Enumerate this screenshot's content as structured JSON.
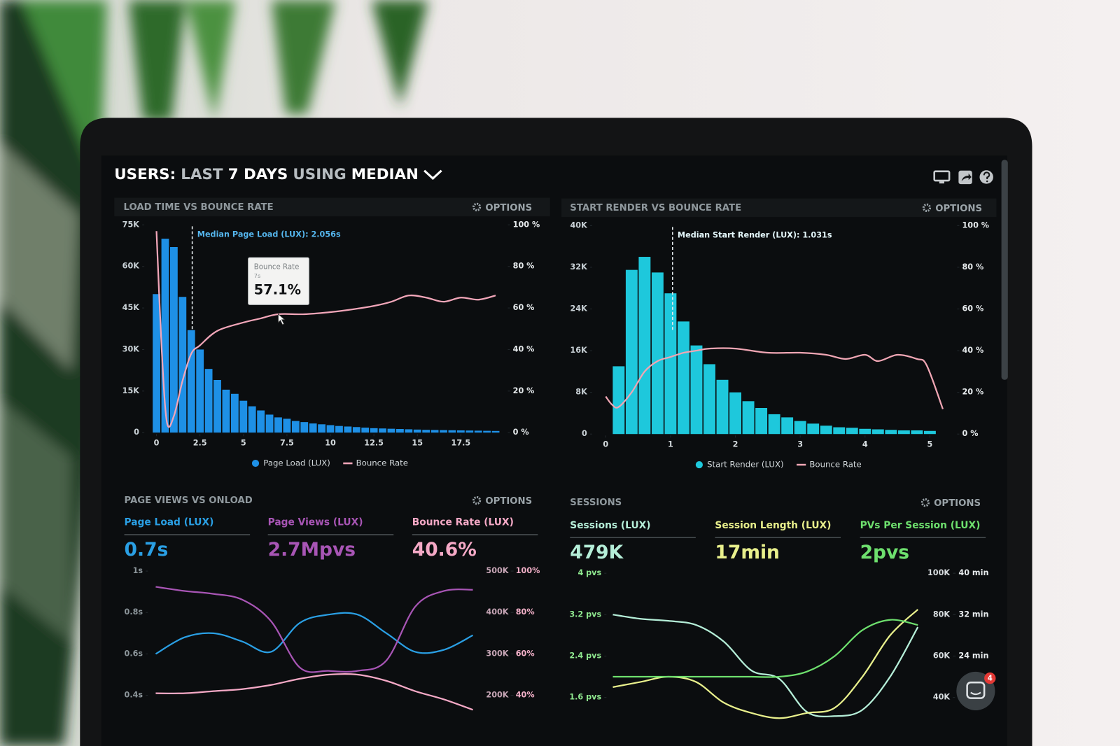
{
  "header": {
    "title_parts": [
      "USERS:",
      "LAST",
      "7 DAYS",
      "USING",
      "MEDIAN"
    ]
  },
  "chat_badge": "4",
  "chart_data": [
    {
      "type": "combo",
      "title": "LOAD TIME VS BOUNCE RATE",
      "options": "OPTIONS",
      "xlim": [
        -0.25,
        19.75
      ],
      "xticks": [
        0,
        2.5,
        5,
        7.5,
        10,
        12.5,
        15,
        17.5
      ],
      "ylim": [
        0,
        75000
      ],
      "yticks": [
        {
          "value": 75000,
          "label": "75K"
        },
        {
          "value": 60000,
          "label": "60K"
        },
        {
          "value": 45000,
          "label": "45K"
        },
        {
          "value": 30000,
          "label": "30K"
        },
        {
          "value": 15000,
          "label": "15K"
        },
        0
      ],
      "y2lim": [
        0,
        100
      ],
      "y2ticks": [
        {
          "value": 100,
          "label": "100 %"
        },
        {
          "value": 80,
          "label": "80 %"
        },
        {
          "value": 60,
          "label": "60 %"
        },
        {
          "value": 40,
          "label": "40 %"
        },
        {
          "value": 20,
          "label": "20 %"
        },
        {
          "value": 0,
          "label": "0 %"
        }
      ],
      "series": [
        {
          "name": "Page Load (LUX)",
          "type": "histogram",
          "color": "#1e90e6",
          "bins": [
            -0.25,
            0.25,
            0.75,
            1.25,
            1.75,
            2.25,
            2.75,
            3.25,
            3.75,
            4.25,
            4.75,
            5.25,
            5.75,
            6.25,
            6.75,
            7.25,
            7.75,
            8.25,
            8.75,
            9.25,
            9.75,
            10.25,
            10.75,
            11.25,
            11.75,
            12.25,
            12.75,
            13.25,
            13.75,
            14.25,
            14.75,
            15.25,
            15.75,
            16.25,
            16.75,
            17.25,
            17.75,
            18.25,
            18.75,
            19.25,
            19.75
          ],
          "values": [
            50000,
            70000,
            67000,
            49000,
            37000,
            30000,
            23000,
            19000,
            15500,
            14000,
            11500,
            9500,
            8000,
            6500,
            5500,
            5000,
            4200,
            3800,
            3300,
            3000,
            2700,
            2400,
            2200,
            2000,
            1800,
            1600,
            1500,
            1400,
            1300,
            1200,
            1100,
            1000,
            950,
            900,
            850,
            800,
            750,
            700,
            650,
            600
          ]
        },
        {
          "name": "Bounce Rate",
          "type": "line",
          "axis": "y2",
          "color": "#f2a6b9",
          "x": [
            0,
            0.3,
            0.6,
            1,
            1.5,
            2,
            2.5,
            3.5,
            5,
            6,
            7,
            8.5,
            10,
            11,
            12.5,
            13.5,
            14.5,
            15.5,
            16.5,
            17.5,
            18.5,
            19.5
          ],
          "values": [
            97,
            40,
            5,
            8,
            25,
            38,
            42,
            49,
            53,
            55,
            57,
            57,
            58,
            59,
            61,
            63,
            66,
            65,
            63,
            65,
            64,
            66
          ]
        }
      ],
      "median": {
        "label": "Median Page Load (LUX): 2.056s",
        "x": 2.056
      },
      "tooltip": {
        "title": "Bounce Rate",
        "x": 7,
        "x_label": "7s",
        "axis": "y2",
        "value": 57.1,
        "value_label": "57.1%"
      }
    },
    {
      "type": "combo",
      "title": "START RENDER VS BOUNCE RATE",
      "options": "OPTIONS",
      "xlim": [
        0,
        5.2
      ],
      "xticks": [
        0,
        1,
        2,
        3,
        4,
        5
      ],
      "ylim": [
        0,
        40000
      ],
      "yticks": [
        {
          "value": 40000,
          "label": "40K"
        },
        {
          "value": 32000,
          "label": "32K"
        },
        {
          "value": 24000,
          "label": "24K"
        },
        {
          "value": 16000,
          "label": "16K"
        },
        {
          "value": 8000,
          "label": "8K"
        },
        0
      ],
      "y2lim": [
        0,
        100
      ],
      "y2ticks": [
        {
          "value": 100,
          "label": "100 %"
        },
        {
          "value": 80,
          "label": "80 %"
        },
        {
          "value": 60,
          "label": "60 %"
        },
        {
          "value": 40,
          "label": "40 %"
        },
        {
          "value": 20,
          "label": "20 %"
        },
        {
          "value": 0,
          "label": "0 %"
        }
      ],
      "series": [
        {
          "name": "Start Render (LUX)",
          "type": "histogram",
          "color": "#1ec8dc",
          "bins": [
            0.1,
            0.3,
            0.5,
            0.7,
            0.9,
            1.1,
            1.3,
            1.5,
            1.7,
            1.9,
            2.1,
            2.3,
            2.5,
            2.7,
            2.9,
            3.1,
            3.3,
            3.5,
            3.7,
            3.9,
            4.1,
            4.3,
            4.5,
            4.7,
            4.9,
            5.1
          ],
          "values": [
            13000,
            31500,
            34000,
            31000,
            27000,
            21600,
            17000,
            13400,
            10400,
            8000,
            6300,
            5000,
            3800,
            3200,
            2500,
            2000,
            1600,
            1300,
            1200,
            1000,
            900,
            800,
            700,
            700,
            600
          ]
        },
        {
          "name": "Bounce Rate",
          "type": "line",
          "axis": "y2",
          "color": "#f0a6b4",
          "x": [
            0,
            0.1,
            0.2,
            0.4,
            0.6,
            0.8,
            1,
            1.2,
            1.4,
            1.6,
            2,
            2.5,
            3,
            3.4,
            3.7,
            4,
            4.2,
            4.5,
            4.8,
            4.95,
            5.2
          ],
          "values": [
            18,
            14,
            13,
            20,
            30,
            35,
            37,
            39,
            40,
            41,
            41,
            39,
            39,
            38,
            36,
            38,
            35,
            38,
            36,
            33,
            12
          ]
        }
      ],
      "median": {
        "label": "Median Start Render (LUX): 1.031s",
        "x": 1.031
      }
    },
    {
      "type": "line",
      "title": "PAGE VIEWS VS ONLOAD",
      "options": "OPTIONS",
      "categories": [
        null,
        null,
        null,
        null,
        null,
        null,
        null,
        null,
        null,
        null,
        null,
        null
      ],
      "ylim": [
        0.3,
        1
      ],
      "yticks": [
        {
          "value": 1,
          "label": "1s"
        },
        {
          "value": 0.8,
          "label": "0.8s"
        },
        {
          "value": 0.6,
          "label": "0.6s"
        },
        {
          "value": 0.4,
          "label": "0.4s"
        }
      ],
      "y2lim": [
        150000,
        500000
      ],
      "y2ticks": [
        {
          "value": 500000,
          "label": "500K"
        },
        {
          "value": 400000,
          "label": "400K"
        },
        {
          "value": 300000,
          "label": "300K"
        },
        {
          "value": 200000,
          "label": "200K"
        }
      ],
      "y3lim": [
        30,
        100
      ],
      "y3ticks": [
        {
          "value": 100,
          "label": "100%"
        },
        {
          "value": 80,
          "label": "80%"
        },
        {
          "value": 60,
          "label": "60%"
        },
        {
          "value": 40,
          "label": "40%"
        }
      ],
      "series": [
        {
          "name": "Page Load (LUX)",
          "kpi": "0.7s",
          "axis": "y",
          "color": "#2a9fe4",
          "values": [
            0.6,
            0.68,
            0.7,
            0.66,
            0.61,
            0.75,
            0.79,
            0.79,
            0.7,
            0.61,
            0.62,
            0.69
          ]
        },
        {
          "name": "Page Views (LUX)",
          "kpi": "2.7Mpvs",
          "axis": "y2",
          "color": "#a855b5",
          "values": [
            462000,
            452000,
            445000,
            431000,
            379000,
            267000,
            259000,
            259000,
            284000,
            414000,
            452000,
            455000
          ]
        },
        {
          "name": "Bounce Rate (LUX)",
          "kpi": "40.6%",
          "axis": "y3",
          "color": "#f5a9c6",
          "values": [
            41,
            41,
            42,
            43,
            45,
            48,
            50,
            50,
            47,
            42,
            38,
            33
          ]
        }
      ]
    },
    {
      "type": "line",
      "title": "SESSIONS",
      "options": "OPTIONS",
      "categories": [
        null,
        null,
        null,
        null,
        null,
        null,
        null,
        null,
        null,
        null,
        null,
        null
      ],
      "ylim": [
        1.2,
        4
      ],
      "yticks": [
        {
          "value": 4,
          "label": "4 pvs"
        },
        {
          "value": 3.2,
          "label": "3.2 pvs"
        },
        {
          "value": 2.4,
          "label": "2.4 pvs"
        },
        {
          "value": 1.6,
          "label": "1.6 pvs"
        }
      ],
      "y2lim": [
        30000,
        100000
      ],
      "y2ticks": [
        {
          "value": 100000,
          "label": "100K"
        },
        {
          "value": 80000,
          "label": "80K"
        },
        {
          "value": 60000,
          "label": "60K"
        },
        {
          "value": 40000,
          "label": "40K"
        }
      ],
      "y3lim": [
        12,
        40
      ],
      "y3ticks": [
        {
          "value": 40,
          "label": "40 min"
        },
        {
          "value": 32,
          "label": "32 min"
        },
        {
          "value": 24,
          "label": "24 min"
        }
      ],
      "series": [
        {
          "name": "Sessions (LUX)",
          "kpi": "479K",
          "axis": "y2",
          "color": "#b5eed8",
          "values": [
            80000,
            78000,
            77000,
            75000,
            67000,
            53000,
            49000,
            33000,
            31000,
            34000,
            50000,
            74000
          ]
        },
        {
          "name": "Session Length (LUX)",
          "kpi": "17min",
          "axis": "y3",
          "color": "#e9f08c",
          "values": [
            18,
            19,
            20,
            19,
            15,
            13,
            12,
            13,
            14,
            20,
            28,
            33
          ]
        },
        {
          "name": "PVs Per Session (LUX)",
          "kpi": "2pvs",
          "axis": "y",
          "color": "#6ee06e",
          "values": [
            2,
            2,
            2,
            2,
            2,
            2,
            2,
            2.1,
            2.4,
            2.9,
            3.1,
            3
          ]
        }
      ]
    }
  ]
}
